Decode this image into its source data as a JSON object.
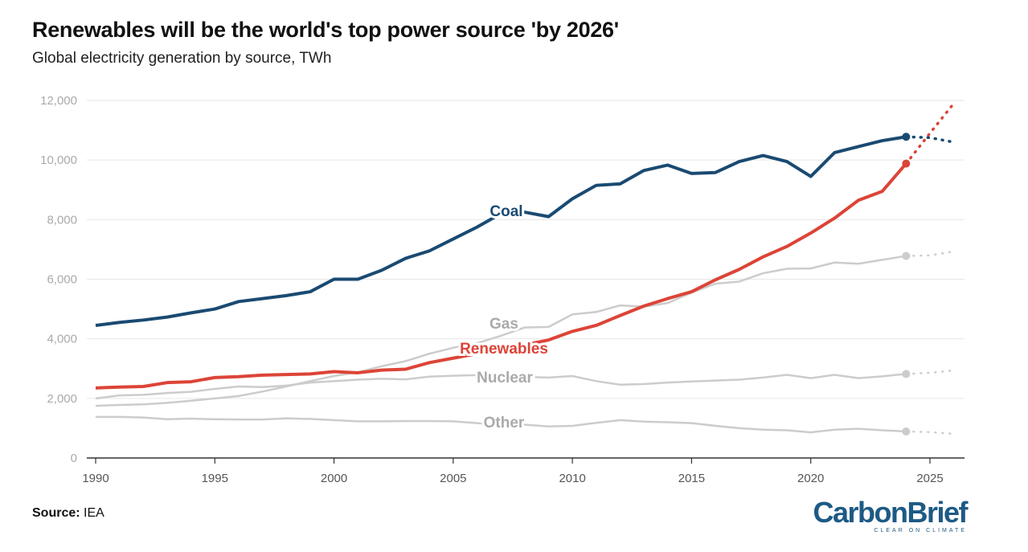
{
  "chart_data": {
    "type": "line",
    "title": "Renewables will be the world's top power source 'by 2026'",
    "subtitle": "Global electricity generation by source, TWh",
    "source_label": "Source:",
    "source": "IEA",
    "logo": {
      "text": "CarbonBrief",
      "tagline": "CLEAR ON CLIMATE"
    },
    "ylim": [
      0,
      12000
    ],
    "yticks": [
      0,
      2000,
      4000,
      6000,
      8000,
      10000,
      12000
    ],
    "ytick_labels": [
      "0",
      "2,000",
      "4,000",
      "6,000",
      "8,000",
      "10,000",
      "12,000"
    ],
    "xticks": [
      1990,
      1995,
      2000,
      2005,
      2010,
      2015,
      2020,
      2025
    ],
    "xtick_labels": [
      "1990",
      "1995",
      "2000",
      "2005",
      "2010",
      "2015",
      "2020",
      "2025"
    ],
    "grid": true,
    "legend": "inline labels",
    "x": [
      1990,
      1991,
      1992,
      1993,
      1994,
      1995,
      1996,
      1997,
      1998,
      1999,
      2000,
      2001,
      2002,
      2003,
      2004,
      2005,
      2006,
      2007,
      2008,
      2009,
      2010,
      2011,
      2012,
      2013,
      2014,
      2015,
      2016,
      2017,
      2018,
      2019,
      2020,
      2021,
      2022,
      2023,
      2024
    ],
    "forecast_x": [
      2024,
      2025,
      2026
    ],
    "series": [
      {
        "name": "Other",
        "color": "#cccccc",
        "values": [
          1380,
          1380,
          1360,
          1300,
          1320,
          1300,
          1290,
          1290,
          1330,
          1310,
          1270,
          1230,
          1230,
          1240,
          1240,
          1230,
          1170,
          1120,
          1120,
          1060,
          1080,
          1180,
          1270,
          1220,
          1200,
          1170,
          1080,
          1000,
          950,
          930,
          860,
          950,
          980,
          930,
          890
        ],
        "forecast": [
          890,
          870,
          810
        ]
      },
      {
        "name": "Nuclear",
        "color": "#cccccc",
        "values": [
          2000,
          2100,
          2120,
          2180,
          2220,
          2320,
          2400,
          2380,
          2430,
          2530,
          2580,
          2630,
          2660,
          2640,
          2730,
          2760,
          2780,
          2720,
          2720,
          2700,
          2750,
          2580,
          2460,
          2480,
          2530,
          2570,
          2600,
          2630,
          2700,
          2790,
          2680,
          2790,
          2680,
          2740,
          2820
        ],
        "forecast": [
          2820,
          2860,
          2940
        ]
      },
      {
        "name": "Gas",
        "color": "#cccccc",
        "values": [
          1750,
          1780,
          1800,
          1850,
          1920,
          2000,
          2080,
          2230,
          2400,
          2580,
          2750,
          2880,
          3080,
          3250,
          3500,
          3700,
          3850,
          4100,
          4380,
          4400,
          4820,
          4900,
          5120,
          5080,
          5200,
          5550,
          5850,
          5920,
          6200,
          6350,
          6360,
          6560,
          6520,
          6650,
          6780
        ],
        "forecast": [
          6780,
          6800,
          6930
        ]
      },
      {
        "name": "Renewables",
        "color": "#dc4437",
        "values": [
          2350,
          2380,
          2400,
          2530,
          2560,
          2700,
          2730,
          2780,
          2800,
          2820,
          2900,
          2860,
          2950,
          2980,
          3200,
          3350,
          3500,
          3620,
          3800,
          3960,
          4250,
          4450,
          4780,
          5100,
          5350,
          5580,
          5980,
          6330,
          6750,
          7100,
          7550,
          8050,
          8650,
          8950,
          9880
        ],
        "forecast": [
          9880,
          10900,
          11900
        ]
      },
      {
        "name": "Coal",
        "color": "#1a4a72",
        "values": [
          4450,
          4550,
          4630,
          4730,
          4870,
          5000,
          5250,
          5350,
          5450,
          5580,
          6000,
          6000,
          6300,
          6700,
          6950,
          7350,
          7750,
          8200,
          8250,
          8100,
          8700,
          9150,
          9200,
          9650,
          9830,
          9550,
          9580,
          9950,
          10150,
          9950,
          9450,
          10250,
          10450,
          10650,
          10780
        ],
        "forecast": [
          10780,
          10750,
          10600
        ]
      }
    ]
  }
}
